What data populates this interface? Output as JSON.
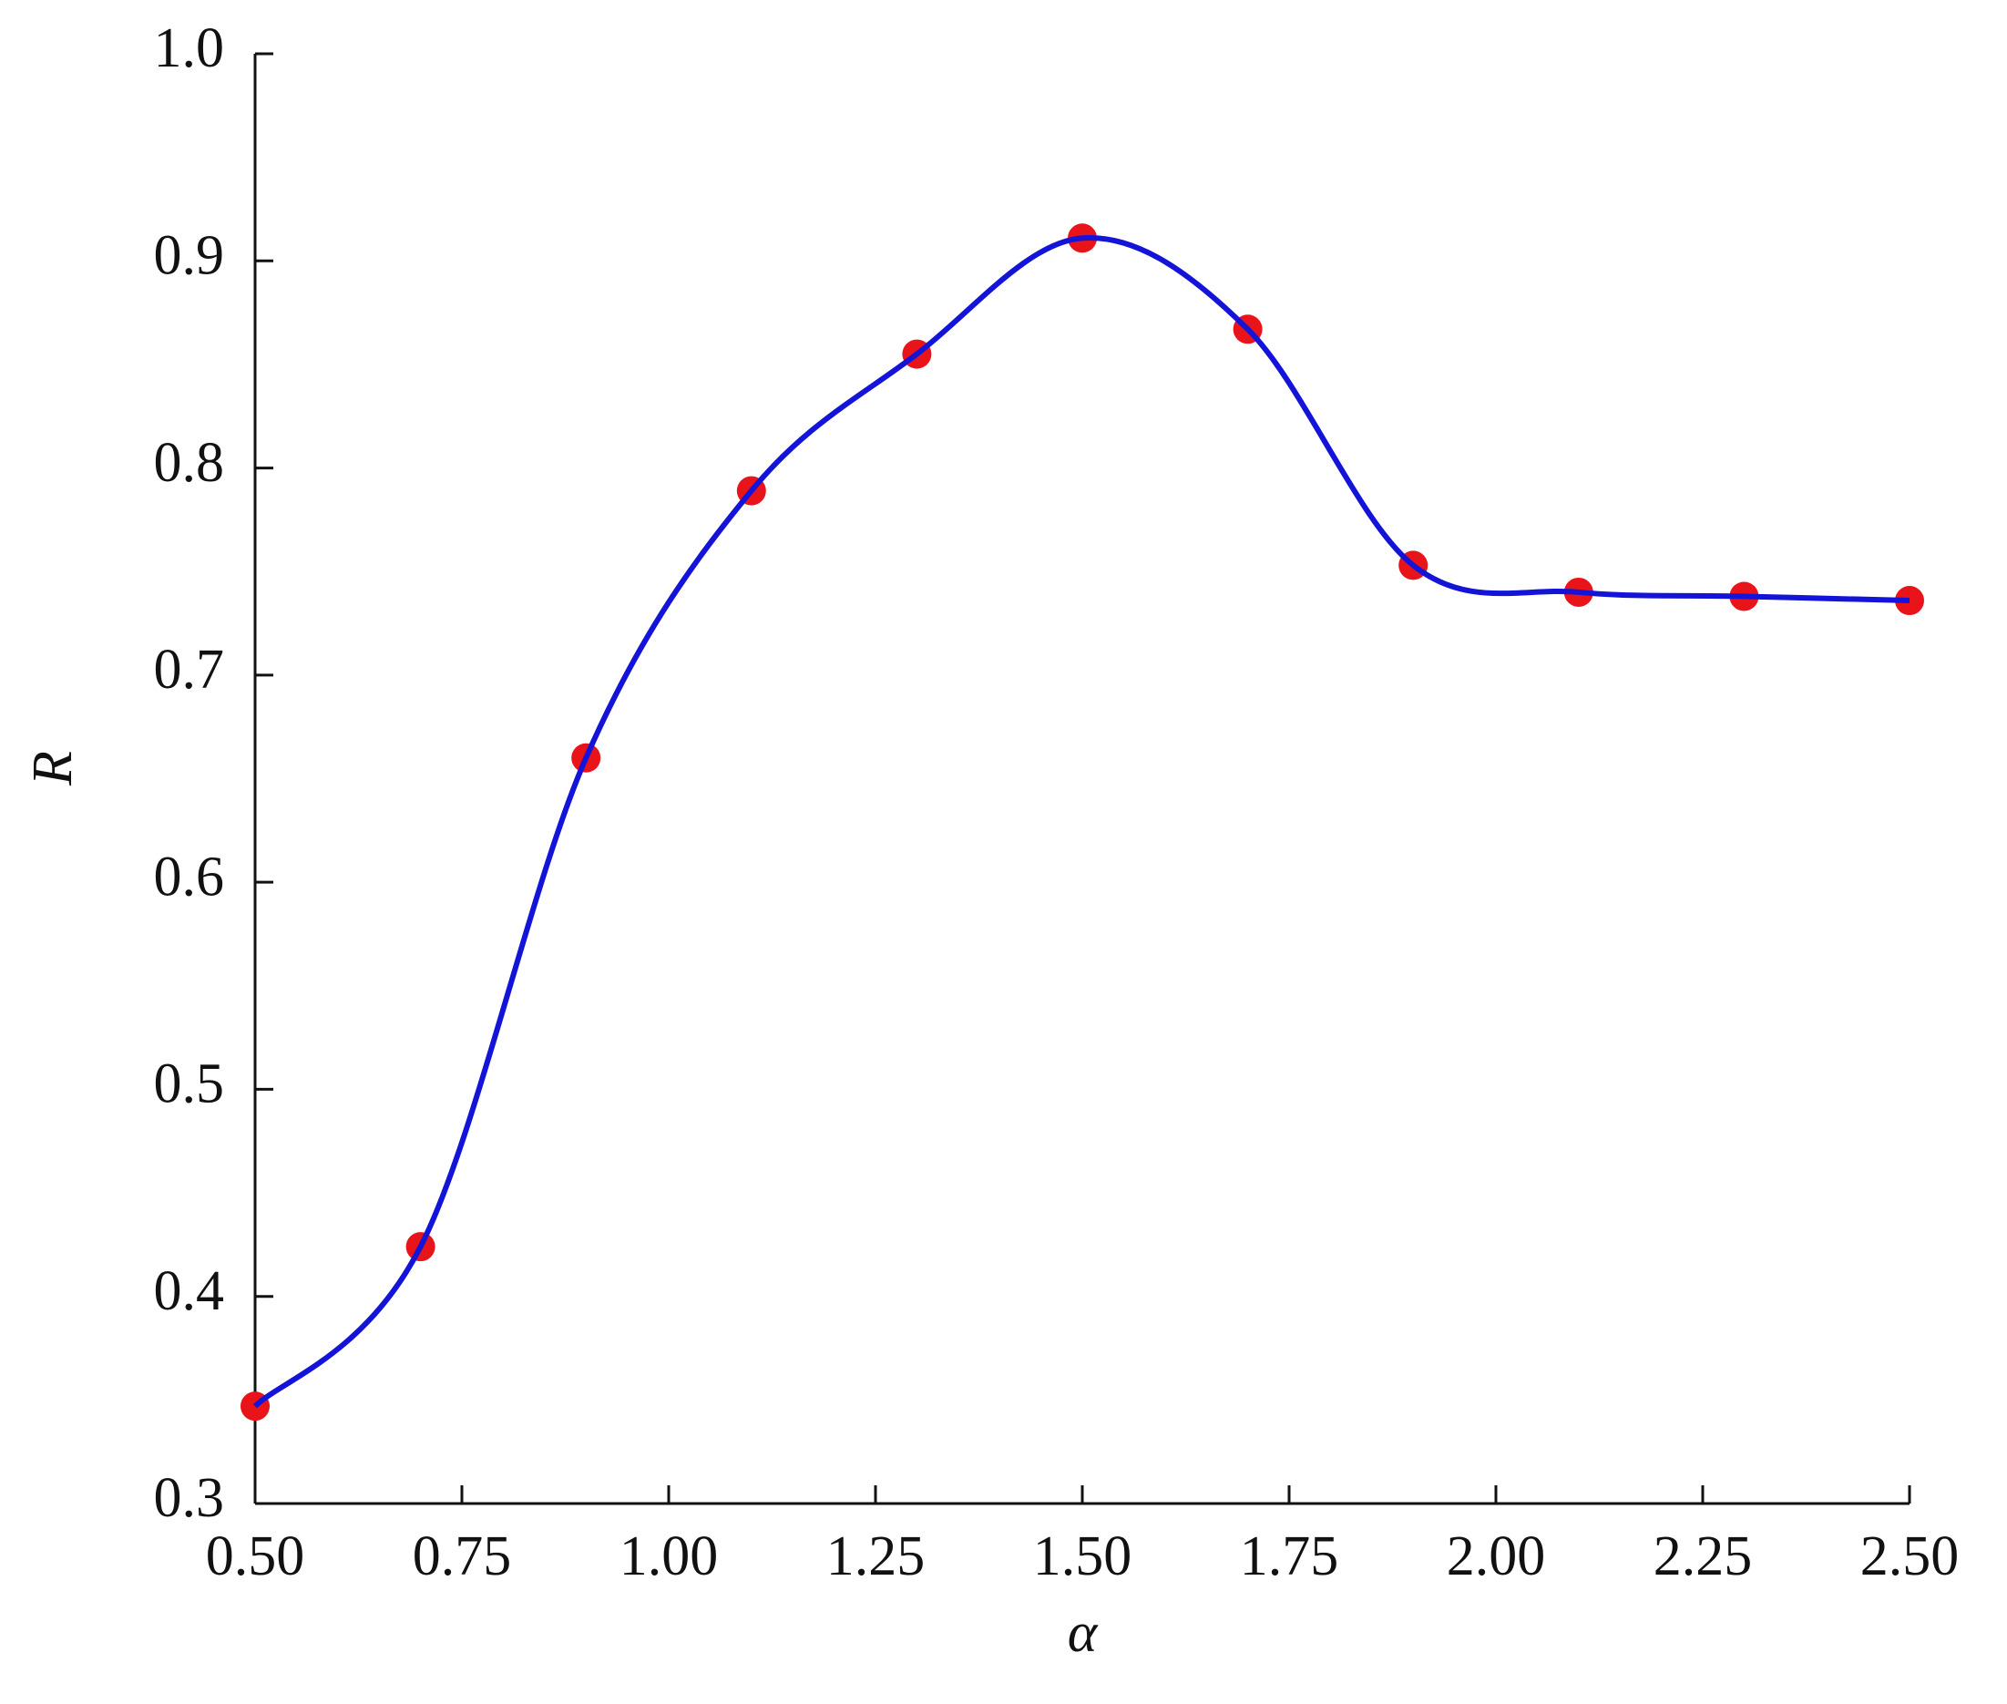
{
  "chart_data": {
    "type": "line",
    "smooth": true,
    "markers": true,
    "x_label": "α",
    "y_label": "R",
    "x": [
      0.5,
      0.7,
      0.9,
      1.1,
      1.3,
      1.5,
      1.7,
      1.9,
      2.1,
      2.3,
      2.5
    ],
    "values": [
      0.347,
      0.424,
      0.66,
      0.789,
      0.855,
      0.911,
      0.867,
      0.753,
      0.74,
      0.738,
      0.736
    ],
    "line_color": "#1414d8",
    "marker_color": "#e8141a",
    "xlim": [
      0.5,
      2.5
    ],
    "xticks": [
      {
        "value": 0.5,
        "label": "0.50"
      },
      {
        "value": 0.75,
        "label": "0.75"
      },
      {
        "value": 1,
        "label": "1.00"
      },
      {
        "value": 1.25,
        "label": "1.25"
      },
      {
        "value": 1.5,
        "label": "1.50"
      },
      {
        "value": 1.75,
        "label": "1.75"
      },
      {
        "value": 2,
        "label": "2.00"
      },
      {
        "value": 2.25,
        "label": "2.25"
      },
      {
        "value": 2.5,
        "label": "2.50"
      }
    ],
    "ylim": [
      0.3,
      1.0
    ],
    "yticks": [
      0.3,
      0.4,
      0.5,
      0.6,
      0.7,
      0.8,
      0.9,
      {
        "value": 1,
        "label": "1.0"
      }
    ],
    "grid": false
  }
}
